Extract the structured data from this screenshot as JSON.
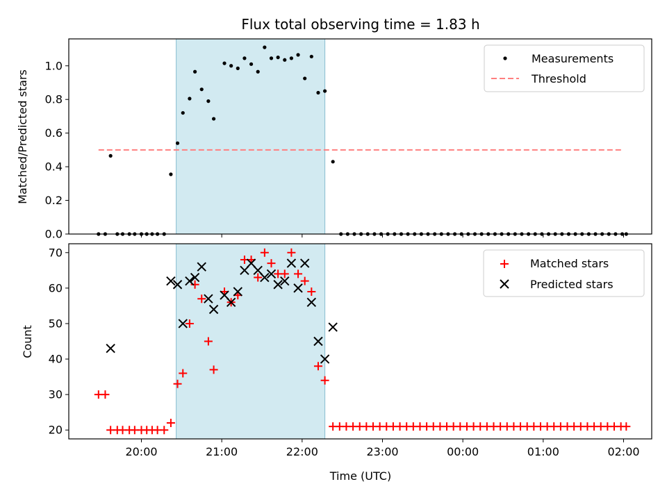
{
  "chart_data": {
    "title": "Flux total observing time = 1.83 h",
    "xlabel": "Time (UTC)",
    "x_tick_labels": [
      "20:00",
      "21:00",
      "22:00",
      "23:00",
      "00:00",
      "01:00",
      "02:00"
    ],
    "highlight_span": [
      "20:26",
      "22:17"
    ],
    "panels": [
      {
        "type": "scatter",
        "ylabel": "Matched/Predicted stars",
        "ylim": [
          0,
          1.16
        ],
        "y_ticks": [
          "0.0",
          "0.2",
          "0.4",
          "0.6",
          "0.8",
          "1.0"
        ],
        "legend_position": "top-right",
        "series": [
          {
            "name": "Measurements",
            "marker": "dot",
            "color": "#000000",
            "points": [
              [
                "19:28",
                0.0
              ],
              [
                "19:33",
                0.0
              ],
              [
                "19:37",
                0.465
              ],
              [
                "19:42",
                0.0
              ],
              [
                "19:46",
                0.0
              ],
              [
                "19:51",
                0.0
              ],
              [
                "19:55",
                0.0
              ],
              [
                "20:00",
                0.0
              ],
              [
                "20:04",
                0.0
              ],
              [
                "20:08",
                0.0
              ],
              [
                "20:12",
                0.0
              ],
              [
                "20:17",
                0.0
              ],
              [
                "20:22",
                0.355
              ],
              [
                "20:27",
                0.54
              ],
              [
                "20:31",
                0.72
              ],
              [
                "20:36",
                0.805
              ],
              [
                "20:40",
                0.965
              ],
              [
                "20:45",
                0.86
              ],
              [
                "20:50",
                0.79
              ],
              [
                "20:54",
                0.685
              ],
              [
                "21:02",
                1.015
              ],
              [
                "21:07",
                1.0
              ],
              [
                "21:12",
                0.985
              ],
              [
                "21:17",
                1.045
              ],
              [
                "21:22",
                1.01
              ],
              [
                "21:27",
                0.965
              ],
              [
                "21:32",
                1.11
              ],
              [
                "21:37",
                1.045
              ],
              [
                "21:42",
                1.05
              ],
              [
                "21:47",
                1.035
              ],
              [
                "21:52",
                1.045
              ],
              [
                "21:57",
                1.065
              ],
              [
                "22:02",
                0.925
              ],
              [
                "22:07",
                1.055
              ],
              [
                "22:12",
                0.84
              ],
              [
                "22:17",
                0.85
              ],
              [
                "22:23",
                0.43
              ],
              [
                "22:29",
                0.0
              ],
              [
                "22:34",
                0.0
              ],
              [
                "22:39",
                0.0
              ],
              [
                "22:44",
                0.0
              ],
              [
                "22:49",
                0.0
              ],
              [
                "22:54",
                0.0
              ],
              [
                "22:59",
                0.0
              ],
              [
                "23:04",
                0.0
              ],
              [
                "23:09",
                0.0
              ],
              [
                "23:14",
                0.0
              ],
              [
                "23:19",
                0.0
              ],
              [
                "23:24",
                0.0
              ],
              [
                "23:29",
                0.0
              ],
              [
                "23:34",
                0.0
              ],
              [
                "23:39",
                0.0
              ],
              [
                "23:44",
                0.0
              ],
              [
                "23:49",
                0.0
              ],
              [
                "23:54",
                0.0
              ],
              [
                "23:59",
                0.0
              ],
              [
                "00:04",
                0.0
              ],
              [
                "00:09",
                0.0
              ],
              [
                "00:14",
                0.0
              ],
              [
                "00:19",
                0.0
              ],
              [
                "00:24",
                0.0
              ],
              [
                "00:29",
                0.0
              ],
              [
                "00:34",
                0.0
              ],
              [
                "00:39",
                0.0
              ],
              [
                "00:44",
                0.0
              ],
              [
                "00:49",
                0.0
              ],
              [
                "00:54",
                0.0
              ],
              [
                "00:59",
                0.0
              ],
              [
                "01:04",
                0.0
              ],
              [
                "01:09",
                0.0
              ],
              [
                "01:14",
                0.0
              ],
              [
                "01:19",
                0.0
              ],
              [
                "01:24",
                0.0
              ],
              [
                "01:29",
                0.0
              ],
              [
                "01:34",
                0.0
              ],
              [
                "01:39",
                0.0
              ],
              [
                "01:44",
                0.0
              ],
              [
                "01:49",
                0.0
              ],
              [
                "01:54",
                0.0
              ],
              [
                "01:59",
                0.0
              ],
              [
                "02:02",
                0.0
              ]
            ]
          },
          {
            "name": "Threshold",
            "marker": "dashed-line",
            "color": "#ff7f7f",
            "points": [
              [
                "19:28",
                0.5
              ],
              [
                "02:00",
                0.5
              ]
            ]
          }
        ]
      },
      {
        "type": "scatter",
        "ylabel": "Count",
        "ylim": [
          17.5,
          72.5
        ],
        "y_ticks": [
          "20",
          "30",
          "40",
          "50",
          "60",
          "70"
        ],
        "legend_position": "top-right",
        "series": [
          {
            "name": "Matched stars",
            "marker": "plus",
            "color": "#ff0000",
            "points": [
              [
                "19:28",
                30
              ],
              [
                "19:33",
                30
              ],
              [
                "19:37",
                20
              ],
              [
                "19:42",
                20
              ],
              [
                "19:46",
                20
              ],
              [
                "19:51",
                20
              ],
              [
                "19:55",
                20
              ],
              [
                "20:00",
                20
              ],
              [
                "20:04",
                20
              ],
              [
                "20:08",
                20
              ],
              [
                "20:12",
                20
              ],
              [
                "20:17",
                20
              ],
              [
                "20:22",
                22
              ],
              [
                "20:27",
                33
              ],
              [
                "20:31",
                36
              ],
              [
                "20:36",
                50
              ],
              [
                "20:40",
                61
              ],
              [
                "20:45",
                57
              ],
              [
                "20:50",
                45
              ],
              [
                "20:54",
                37
              ],
              [
                "21:02",
                59
              ],
              [
                "21:07",
                56
              ],
              [
                "21:12",
                58
              ],
              [
                "21:17",
                68
              ],
              [
                "21:22",
                68
              ],
              [
                "21:27",
                63
              ],
              [
                "21:32",
                70
              ],
              [
                "21:37",
                67
              ],
              [
                "21:42",
                64
              ],
              [
                "21:47",
                64
              ],
              [
                "21:52",
                70
              ],
              [
                "21:57",
                64
              ],
              [
                "22:02",
                62
              ],
              [
                "22:07",
                59
              ],
              [
                "22:12",
                38
              ],
              [
                "22:17",
                34
              ],
              [
                "22:23",
                21
              ],
              [
                "22:28",
                21
              ],
              [
                "22:33",
                21
              ],
              [
                "22:38",
                21
              ],
              [
                "22:43",
                21
              ],
              [
                "22:48",
                21
              ],
              [
                "22:53",
                21
              ],
              [
                "22:58",
                21
              ],
              [
                "23:03",
                21
              ],
              [
                "23:08",
                21
              ],
              [
                "23:13",
                21
              ],
              [
                "23:18",
                21
              ],
              [
                "23:23",
                21
              ],
              [
                "23:28",
                21
              ],
              [
                "23:33",
                21
              ],
              [
                "23:38",
                21
              ],
              [
                "23:43",
                21
              ],
              [
                "23:48",
                21
              ],
              [
                "23:53",
                21
              ],
              [
                "23:58",
                21
              ],
              [
                "00:03",
                21
              ],
              [
                "00:08",
                21
              ],
              [
                "00:13",
                21
              ],
              [
                "00:18",
                21
              ],
              [
                "00:23",
                21
              ],
              [
                "00:28",
                21
              ],
              [
                "00:33",
                21
              ],
              [
                "00:38",
                21
              ],
              [
                "00:43",
                21
              ],
              [
                "00:48",
                21
              ],
              [
                "00:53",
                21
              ],
              [
                "00:58",
                21
              ],
              [
                "01:03",
                21
              ],
              [
                "01:08",
                21
              ],
              [
                "01:13",
                21
              ],
              [
                "01:18",
                21
              ],
              [
                "01:23",
                21
              ],
              [
                "01:28",
                21
              ],
              [
                "01:33",
                21
              ],
              [
                "01:38",
                21
              ],
              [
                "01:43",
                21
              ],
              [
                "01:48",
                21
              ],
              [
                "01:53",
                21
              ],
              [
                "01:58",
                21
              ],
              [
                "02:02",
                21
              ]
            ]
          },
          {
            "name": "Predicted stars",
            "marker": "x",
            "color": "#000000",
            "points": [
              [
                "19:37",
                43
              ],
              [
                "20:22",
                62
              ],
              [
                "20:27",
                61
              ],
              [
                "20:31",
                50
              ],
              [
                "20:36",
                62
              ],
              [
                "20:40",
                63
              ],
              [
                "20:45",
                66
              ],
              [
                "20:50",
                57
              ],
              [
                "20:54",
                54
              ],
              [
                "21:02",
                58
              ],
              [
                "21:07",
                56
              ],
              [
                "21:12",
                59
              ],
              [
                "21:17",
                65
              ],
              [
                "21:22",
                67
              ],
              [
                "21:27",
                65
              ],
              [
                "21:32",
                63
              ],
              [
                "21:37",
                64
              ],
              [
                "21:42",
                61
              ],
              [
                "21:47",
                62
              ],
              [
                "21:52",
                67
              ],
              [
                "21:57",
                60
              ],
              [
                "22:02",
                67
              ],
              [
                "22:07",
                56
              ],
              [
                "22:12",
                45
              ],
              [
                "22:17",
                40
              ],
              [
                "22:23",
                49
              ]
            ]
          }
        ]
      }
    ]
  }
}
